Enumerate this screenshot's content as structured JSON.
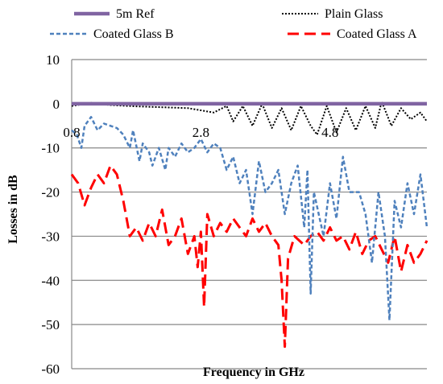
{
  "chart_data": {
    "type": "line",
    "title": "",
    "xlabel": "Frequency in GHz",
    "ylabel": "Losses in dB",
    "xlim": [
      0.8,
      6.3
    ],
    "ylim": [
      -60,
      10
    ],
    "yticks": [
      10,
      0,
      -10,
      -20,
      -30,
      -40,
      -50,
      -60
    ],
    "ytick_labels": [
      "10",
      "0",
      "-10",
      "-20",
      "-30",
      "-40",
      "-50",
      "-60"
    ],
    "xticks": [
      0.8,
      2.8,
      4.8
    ],
    "xtick_labels": [
      "0.8",
      "2.8",
      "4.8"
    ],
    "xtick_position": "on the 0 dB line",
    "grid": "horizontal major",
    "legend_position": "top, two columns",
    "series": [
      {
        "name": "5m Ref",
        "color": "#8064A2",
        "style": "solid",
        "points": [
          [
            0.8,
            0
          ],
          [
            6.3,
            0
          ]
        ]
      },
      {
        "name": "Plain Glass",
        "color": "#000000",
        "style": "dotted",
        "points": [
          [
            0.8,
            -0.5
          ],
          [
            1.1,
            0.2
          ],
          [
            1.4,
            -0.3
          ],
          [
            1.8,
            -0.6
          ],
          [
            2.2,
            -0.8
          ],
          [
            2.6,
            -1.0
          ],
          [
            3.0,
            -2.0
          ],
          [
            3.2,
            -0.5
          ],
          [
            3.3,
            -4.0
          ],
          [
            3.45,
            -0.5
          ],
          [
            3.6,
            -5.0
          ],
          [
            3.75,
            0.0
          ],
          [
            3.9,
            -5.5
          ],
          [
            4.05,
            -1.0
          ],
          [
            4.2,
            -6.0
          ],
          [
            4.35,
            -0.5
          ],
          [
            4.5,
            -5.0
          ],
          [
            4.6,
            -7.0
          ],
          [
            4.75,
            -0.5
          ],
          [
            4.9,
            -6.5
          ],
          [
            5.05,
            -1.0
          ],
          [
            5.2,
            -6.0
          ],
          [
            5.35,
            -0.5
          ],
          [
            5.5,
            -5.5
          ],
          [
            5.6,
            0.5
          ],
          [
            5.75,
            -5.0
          ],
          [
            5.9,
            -1.0
          ],
          [
            6.05,
            -3.5
          ],
          [
            6.2,
            -2.0
          ],
          [
            6.3,
            -4.0
          ]
        ]
      },
      {
        "name": "Coated Glass B",
        "color": "#4F81BD",
        "style": "dashed",
        "points": [
          [
            0.8,
            -6
          ],
          [
            0.88,
            -7
          ],
          [
            0.95,
            -10
          ],
          [
            1.0,
            -5
          ],
          [
            1.1,
            -3
          ],
          [
            1.2,
            -6
          ],
          [
            1.3,
            -4.5
          ],
          [
            1.4,
            -5
          ],
          [
            1.5,
            -5.5
          ],
          [
            1.6,
            -7
          ],
          [
            1.7,
            -10
          ],
          [
            1.75,
            -6
          ],
          [
            1.85,
            -13
          ],
          [
            1.9,
            -9
          ],
          [
            2.0,
            -11
          ],
          [
            2.05,
            -14
          ],
          [
            2.15,
            -10
          ],
          [
            2.25,
            -15
          ],
          [
            2.3,
            -10
          ],
          [
            2.4,
            -12
          ],
          [
            2.5,
            -9
          ],
          [
            2.6,
            -11
          ],
          [
            2.7,
            -10
          ],
          [
            2.8,
            -8
          ],
          [
            2.9,
            -11
          ],
          [
            3.0,
            -9
          ],
          [
            3.1,
            -10
          ],
          [
            3.2,
            -15
          ],
          [
            3.3,
            -12
          ],
          [
            3.4,
            -18
          ],
          [
            3.5,
            -15
          ],
          [
            3.6,
            -25
          ],
          [
            3.7,
            -13
          ],
          [
            3.8,
            -20
          ],
          [
            3.9,
            -18
          ],
          [
            4.0,
            -15
          ],
          [
            4.1,
            -25
          ],
          [
            4.2,
            -18
          ],
          [
            4.3,
            -14
          ],
          [
            4.4,
            -28
          ],
          [
            4.45,
            -15
          ],
          [
            4.5,
            -43
          ],
          [
            4.55,
            -20
          ],
          [
            4.7,
            -30
          ],
          [
            4.8,
            -18
          ],
          [
            4.9,
            -26
          ],
          [
            5.0,
            -12
          ],
          [
            5.1,
            -20
          ],
          [
            5.25,
            -20
          ],
          [
            5.35,
            -25
          ],
          [
            5.45,
            -36
          ],
          [
            5.55,
            -20
          ],
          [
            5.65,
            -30
          ],
          [
            5.72,
            -49
          ],
          [
            5.8,
            -22
          ],
          [
            5.9,
            -28
          ],
          [
            6.0,
            -18
          ],
          [
            6.1,
            -25
          ],
          [
            6.2,
            -16
          ],
          [
            6.3,
            -28
          ]
        ]
      },
      {
        "name": "Coated Glass A",
        "color": "#FF0000",
        "style": "long-dash",
        "points": [
          [
            0.8,
            -16
          ],
          [
            0.9,
            -18
          ],
          [
            1.0,
            -23
          ],
          [
            1.1,
            -19
          ],
          [
            1.2,
            -16
          ],
          [
            1.3,
            -18
          ],
          [
            1.4,
            -14
          ],
          [
            1.5,
            -16
          ],
          [
            1.6,
            -22
          ],
          [
            1.65,
            -26
          ],
          [
            1.7,
            -30
          ],
          [
            1.8,
            -28
          ],
          [
            1.9,
            -31
          ],
          [
            2.0,
            -27
          ],
          [
            2.1,
            -30
          ],
          [
            2.2,
            -24
          ],
          [
            2.3,
            -32
          ],
          [
            2.4,
            -30
          ],
          [
            2.5,
            -26
          ],
          [
            2.6,
            -34
          ],
          [
            2.7,
            -30
          ],
          [
            2.75,
            -37
          ],
          [
            2.8,
            -29
          ],
          [
            2.85,
            -46
          ],
          [
            2.9,
            -25
          ],
          [
            3.0,
            -30
          ],
          [
            3.1,
            -27
          ],
          [
            3.2,
            -29
          ],
          [
            3.3,
            -26
          ],
          [
            3.4,
            -28
          ],
          [
            3.5,
            -30
          ],
          [
            3.6,
            -26
          ],
          [
            3.7,
            -29
          ],
          [
            3.8,
            -27
          ],
          [
            3.9,
            -30
          ],
          [
            4.0,
            -32
          ],
          [
            4.05,
            -40
          ],
          [
            4.1,
            -55
          ],
          [
            4.15,
            -35
          ],
          [
            4.25,
            -30
          ],
          [
            4.4,
            -32
          ],
          [
            4.5,
            -30
          ],
          [
            4.6,
            -29
          ],
          [
            4.7,
            -31
          ],
          [
            4.8,
            -28
          ],
          [
            4.9,
            -31
          ],
          [
            5.0,
            -30
          ],
          [
            5.1,
            -33
          ],
          [
            5.2,
            -29
          ],
          [
            5.3,
            -34
          ],
          [
            5.4,
            -31
          ],
          [
            5.5,
            -30
          ],
          [
            5.6,
            -33
          ],
          [
            5.7,
            -36
          ],
          [
            5.8,
            -30
          ],
          [
            5.9,
            -38
          ],
          [
            6.0,
            -32
          ],
          [
            6.1,
            -36
          ],
          [
            6.2,
            -34
          ],
          [
            6.3,
            -31
          ]
        ]
      }
    ]
  }
}
